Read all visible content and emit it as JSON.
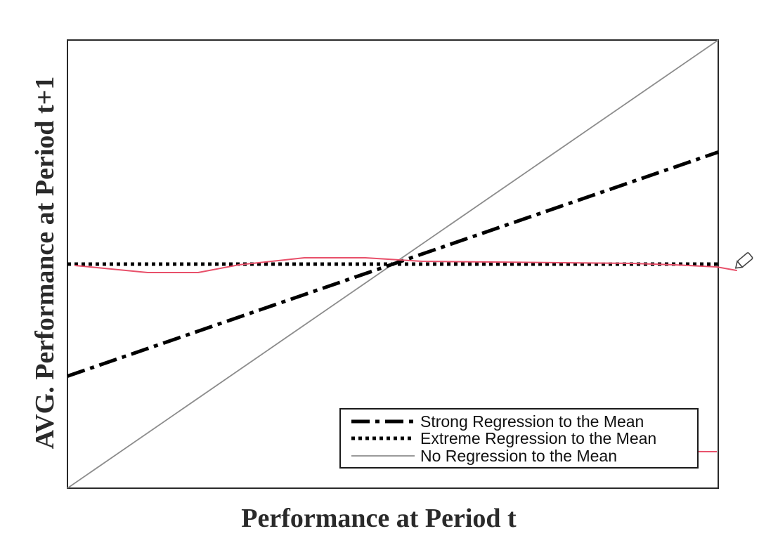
{
  "chart_data": {
    "type": "line",
    "xlabel": "Performance at Period t",
    "ylabel": "AVG. Performance at Period t+1",
    "xlim": [
      0,
      1
    ],
    "ylim": [
      0,
      1
    ],
    "grid": false,
    "legend_position": "bottom-right",
    "series": [
      {
        "name": "Strong Regression to the Mean",
        "style": "dashdot",
        "color": "#000000",
        "x": [
          0,
          1
        ],
        "y": [
          0.25,
          0.75
        ]
      },
      {
        "name": "Extreme Regression to the Mean",
        "style": "dotted",
        "color": "#000000",
        "x": [
          0,
          1
        ],
        "y": [
          0.5,
          0.5
        ]
      },
      {
        "name": "No Regression to the Mean",
        "style": "solid",
        "color": "#808080",
        "x": [
          0,
          1
        ],
        "y": [
          0,
          1
        ]
      }
    ],
    "annotation_color": "#e8506a"
  }
}
